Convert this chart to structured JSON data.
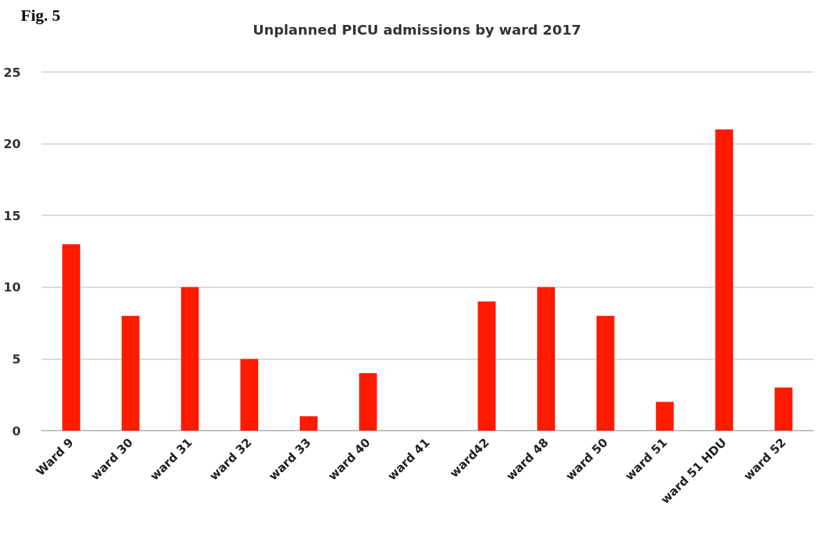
{
  "chart_data": {
    "type": "bar",
    "title": "Unplanned PICU admissions by ward 2017",
    "annotations": [
      "Fig. 5"
    ],
    "categories": [
      "Ward 9",
      "ward 30",
      "ward 31",
      "ward 32",
      "ward 33",
      "ward 40",
      "ward 41",
      "ward42",
      "ward 48",
      "ward 50",
      "ward 51",
      "ward 51 HDU",
      "ward 52"
    ],
    "values": [
      13,
      8,
      10,
      5,
      1,
      4,
      0,
      9,
      10,
      8,
      2,
      21,
      3
    ],
    "color": "#ff1a00",
    "ylim": [
      0,
      25
    ],
    "yticks": [
      0,
      5,
      10,
      15,
      20,
      25
    ],
    "grid": "y"
  }
}
